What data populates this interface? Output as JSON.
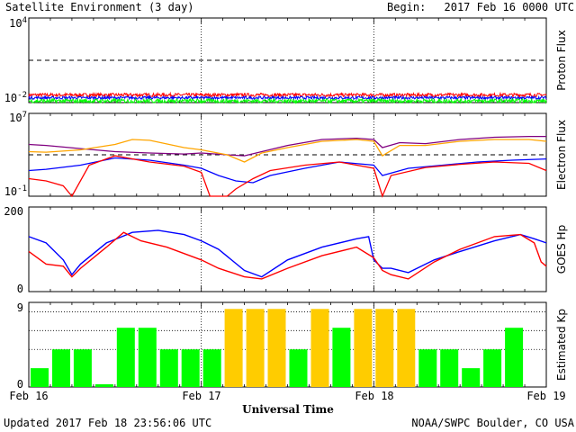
{
  "header": {
    "title": "Satellite Environment (3 day)",
    "begin_label": "Begin:",
    "begin_value": "2017 Feb 16 0000 UTC"
  },
  "footer": {
    "updated": "Updated 2017 Feb 18 23:56:06 UTC",
    "credit": "NOAA/SWPC Boulder, CO USA",
    "xlabel": "Universal Time"
  },
  "x_ticks": [
    "Feb 16",
    "Feb 17",
    "Feb 18",
    "Feb 19"
  ],
  "colors": {
    "red": "#ff0000",
    "blue": "#0000ff",
    "green": "#00ff00",
    "purple": "#800080",
    "orange": "#ffa500",
    "kp_green": "#00ff00",
    "kp_yellow": "#ffcc00",
    "axis": "#000000"
  },
  "chart_data": [
    {
      "type": "line",
      "ylabel": "Proton Flux",
      "yscale": "log",
      "ylim": [
        0.01,
        10000
      ],
      "y_tick_labels": {
        "top_base": "10",
        "top_exp": "4",
        "bottom_base": "10",
        "bottom_exp": "-2"
      },
      "threshold": 10,
      "x_range_days": [
        0,
        3
      ],
      "series": [
        {
          "color": "red",
          "level": 0.035,
          "jitter": 0.12
        },
        {
          "color": "blue",
          "level": 0.022,
          "jitter": 0.1
        },
        {
          "color": "green",
          "level": 0.013,
          "jitter": 0.15
        }
      ]
    },
    {
      "type": "line",
      "ylabel": "Electron Flux",
      "yscale": "log",
      "ylim": [
        0.1,
        10000000
      ],
      "y_tick_labels": {
        "top_base": "10",
        "top_exp": "7",
        "bottom_base": "10",
        "bottom_exp": "-1"
      },
      "threshold": 1000,
      "x_range_days": [
        0,
        3
      ],
      "series": [
        {
          "color": "purple",
          "x": [
            0,
            0.1,
            0.3,
            0.5,
            0.7,
            0.9,
            1.0,
            1.15,
            1.25,
            1.35,
            1.5,
            1.7,
            1.9,
            2.0,
            2.05,
            2.15,
            2.3,
            2.5,
            2.7,
            2.9,
            3.0
          ],
          "y": [
            10000,
            8000,
            4000,
            2000,
            1500,
            1200,
            1500,
            1000,
            800,
            2000,
            8000,
            30000,
            40000,
            30000,
            5000,
            15000,
            12000,
            30000,
            50000,
            60000,
            60000
          ]
        },
        {
          "color": "orange",
          "x": [
            0,
            0.1,
            0.3,
            0.5,
            0.6,
            0.7,
            0.9,
            1.0,
            1.15,
            1.25,
            1.35,
            1.5,
            1.7,
            1.9,
            2.0,
            2.05,
            2.15,
            2.3,
            2.5,
            2.7,
            2.9,
            3.0
          ],
          "y": [
            2000,
            1800,
            3000,
            10000,
            30000,
            25000,
            5000,
            3000,
            1000,
            200,
            1500,
            5000,
            20000,
            30000,
            20000,
            800,
            8000,
            8000,
            20000,
            30000,
            30000,
            20000
          ]
        },
        {
          "color": "blue",
          "x": [
            0,
            0.1,
            0.3,
            0.5,
            0.7,
            0.9,
            1.0,
            1.1,
            1.2,
            1.3,
            1.4,
            1.6,
            1.8,
            2.0,
            2.05,
            2.2,
            2.4,
            2.6,
            2.8,
            3.0
          ],
          "y": [
            30,
            40,
            100,
            500,
            300,
            100,
            50,
            10,
            3,
            2,
            10,
            50,
            200,
            100,
            10,
            50,
            100,
            200,
            300,
            400
          ]
        },
        {
          "color": "red",
          "x": [
            0,
            0.1,
            0.2,
            0.25,
            0.35,
            0.5,
            0.7,
            0.9,
            1.0,
            1.05,
            1.15,
            1.2,
            1.3,
            1.4,
            1.6,
            1.8,
            2.0,
            2.05,
            2.1,
            2.3,
            2.5,
            2.7,
            2.9,
            3.0
          ],
          "y": [
            5,
            3,
            1,
            0.1,
            100,
            800,
            200,
            80,
            20,
            0.1,
            0.1,
            0.5,
            5,
            30,
            100,
            200,
            50,
            0.1,
            10,
            60,
            120,
            200,
            150,
            30
          ]
        }
      ]
    },
    {
      "type": "line",
      "ylabel": "GOES Hp",
      "ylim": [
        0,
        200
      ],
      "y_tick_labels": {
        "top": "200",
        "bottom": "0"
      },
      "x_range_days": [
        0,
        3
      ],
      "series": [
        {
          "color": "blue",
          "x": [
            0,
            0.1,
            0.2,
            0.25,
            0.3,
            0.45,
            0.6,
            0.75,
            0.9,
            1.0,
            1.1,
            1.25,
            1.35,
            1.5,
            1.7,
            1.9,
            1.97,
            2.0,
            2.05,
            2.1,
            2.2,
            2.35,
            2.5,
            2.7,
            2.85,
            2.93,
            3.0
          ],
          "y": [
            130,
            115,
            75,
            40,
            65,
            115,
            140,
            145,
            135,
            120,
            100,
            50,
            35,
            75,
            105,
            125,
            130,
            75,
            55,
            55,
            45,
            75,
            95,
            120,
            135,
            125,
            115
          ]
        },
        {
          "color": "red",
          "x": [
            0,
            0.1,
            0.2,
            0.25,
            0.3,
            0.45,
            0.55,
            0.65,
            0.8,
            1.0,
            1.1,
            1.25,
            1.35,
            1.5,
            1.7,
            1.9,
            2.0,
            2.05,
            2.1,
            2.2,
            2.35,
            2.5,
            2.7,
            2.85,
            2.93,
            2.97,
            3.0
          ],
          "y": [
            95,
            65,
            60,
            35,
            55,
            105,
            140,
            120,
            105,
            75,
            55,
            35,
            30,
            55,
            85,
            105,
            80,
            50,
            40,
            30,
            70,
            100,
            130,
            135,
            115,
            70,
            60
          ]
        }
      ]
    },
    {
      "type": "bar",
      "ylabel": "Estimated Kp",
      "ylim": [
        0,
        9
      ],
      "y_tick_labels": {
        "top": "9",
        "bottom": "0"
      },
      "gridlines": [
        4,
        6,
        8
      ],
      "bar_width_hours": 3,
      "values": [
        2,
        4,
        4,
        0.3,
        6.3,
        6.3,
        4,
        4,
        4,
        8.3,
        8.3,
        8.3,
        4,
        8.3,
        6.3,
        8.3,
        8.3,
        8.3,
        4,
        4,
        2,
        4,
        6.3,
        0
      ],
      "colors": [
        "kp_green",
        "kp_green",
        "kp_green",
        "kp_green",
        "kp_green",
        "kp_green",
        "kp_green",
        "kp_green",
        "kp_green",
        "kp_yellow",
        "kp_yellow",
        "kp_yellow",
        "kp_green",
        "kp_yellow",
        "kp_green",
        "kp_yellow",
        "kp_yellow",
        "kp_yellow",
        "kp_green",
        "kp_green",
        "kp_green",
        "kp_green",
        "kp_green",
        "kp_green"
      ]
    }
  ]
}
